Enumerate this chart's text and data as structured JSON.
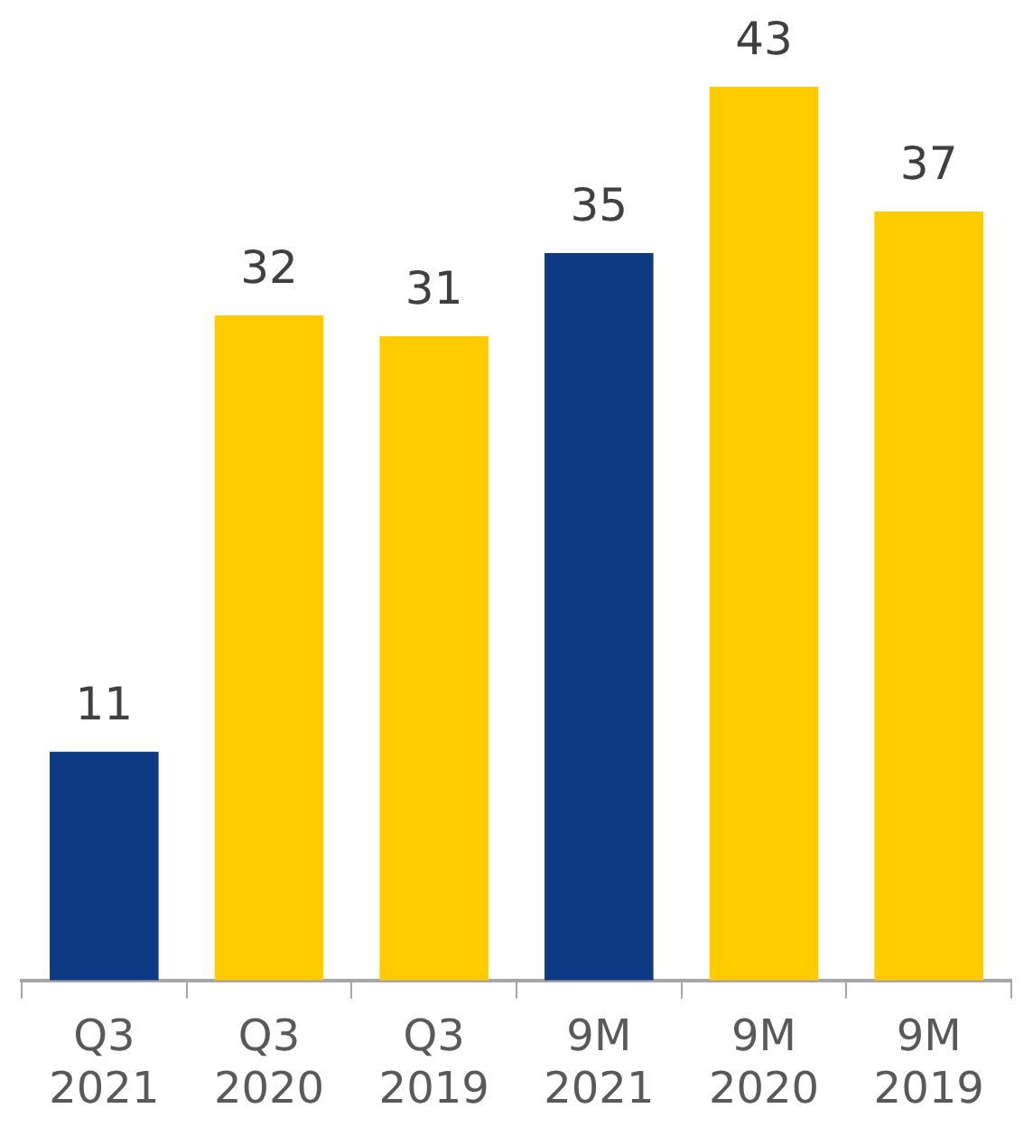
{
  "chart_data": {
    "type": "bar",
    "categories": [
      "Q3 2021",
      "Q3 2020",
      "Q3 2019",
      "9M 2021",
      "9M 2020",
      "9M 2019"
    ],
    "values": [
      11,
      32,
      31,
      35,
      43,
      37
    ],
    "colors": [
      "#0d3a82",
      "#ffcc00",
      "#ffcc00",
      "#0d3a82",
      "#ffcc00",
      "#ffcc00"
    ],
    "data_labels": true,
    "grid": false,
    "legend": false
  }
}
